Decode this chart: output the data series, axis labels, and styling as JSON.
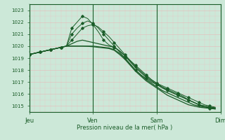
{
  "xlabel": "Pression niveau de la mer( hPa )",
  "xtick_labels": [
    "Jeu",
    "Ven",
    "Sam",
    "Dim"
  ],
  "xtick_positions": [
    0,
    24,
    48,
    72
  ],
  "ylim": [
    1014.5,
    1023.5
  ],
  "yticks": [
    1015,
    1016,
    1017,
    1018,
    1019,
    1020,
    1021,
    1022,
    1023
  ],
  "bg_color": "#cce8d8",
  "grid_color_major": "#e8b8b8",
  "grid_color_minor": "#e8c8c8",
  "line_color": "#1a5c28",
  "fig_bg": "#cce8d8",
  "lines": [
    {
      "y": [
        1019.3,
        1019.4,
        1019.5,
        1019.6,
        1019.7,
        1019.8,
        1019.9,
        1020.0,
        1021.5,
        1022.0,
        1022.5,
        1022.3,
        1021.8,
        1021.2,
        1020.5,
        1020.1,
        1019.9,
        1019.6,
        1019.2,
        1018.8,
        1018.4,
        1018.0,
        1017.6,
        1017.2,
        1016.9,
        1016.6,
        1016.4,
        1016.2,
        1016.0,
        1015.8,
        1015.5,
        1015.3,
        1015.1,
        1014.9,
        1014.8,
        1014.75
      ],
      "marker": true
    },
    {
      "y": [
        1019.3,
        1019.4,
        1019.5,
        1019.6,
        1019.7,
        1019.8,
        1019.9,
        1020.0,
        1021.0,
        1021.5,
        1021.9,
        1022.1,
        1021.9,
        1021.5,
        1021.0,
        1020.5,
        1020.0,
        1019.5,
        1019.0,
        1018.5,
        1018.0,
        1017.6,
        1017.3,
        1017.0,
        1016.8,
        1016.5,
        1016.3,
        1016.1,
        1015.9,
        1015.7,
        1015.5,
        1015.3,
        1015.1,
        1015.0,
        1014.9,
        1014.85
      ],
      "marker": true
    },
    {
      "y": [
        1019.3,
        1019.4,
        1019.5,
        1019.6,
        1019.7,
        1019.8,
        1019.9,
        1020.0,
        1020.5,
        1021.0,
        1021.5,
        1021.7,
        1021.8,
        1021.6,
        1021.2,
        1020.8,
        1020.3,
        1019.8,
        1019.3,
        1018.8,
        1018.3,
        1017.9,
        1017.5,
        1017.2,
        1016.9,
        1016.7,
        1016.5,
        1016.3,
        1016.1,
        1015.9,
        1015.7,
        1015.5,
        1015.3,
        1015.1,
        1015.0,
        1014.9
      ],
      "marker": true
    },
    {
      "y": [
        1019.3,
        1019.4,
        1019.5,
        1019.6,
        1019.7,
        1019.8,
        1019.9,
        1020.0,
        1020.2,
        1020.4,
        1020.5,
        1020.4,
        1020.3,
        1020.2,
        1020.1,
        1020.0,
        1019.9,
        1019.6,
        1019.2,
        1018.7,
        1018.2,
        1017.8,
        1017.4,
        1017.1,
        1016.8,
        1016.6,
        1016.3,
        1016.1,
        1015.9,
        1015.7,
        1015.5,
        1015.3,
        1015.1,
        1015.0,
        1014.9,
        1014.85
      ],
      "marker": false
    },
    {
      "y": [
        1019.3,
        1019.4,
        1019.5,
        1019.6,
        1019.7,
        1019.8,
        1019.9,
        1020.0,
        1020.0,
        1020.0,
        1020.0,
        1020.0,
        1020.0,
        1019.95,
        1019.9,
        1019.85,
        1019.7,
        1019.4,
        1019.0,
        1018.5,
        1018.0,
        1017.6,
        1017.2,
        1016.9,
        1016.6,
        1016.3,
        1016.1,
        1015.9,
        1015.7,
        1015.5,
        1015.3,
        1015.1,
        1015.0,
        1014.9,
        1014.85,
        1014.8
      ],
      "marker": false
    },
    {
      "y": [
        1019.3,
        1019.4,
        1019.5,
        1019.6,
        1019.7,
        1019.8,
        1019.9,
        1020.0,
        1020.0,
        1020.0,
        1020.0,
        1019.98,
        1019.95,
        1019.9,
        1019.85,
        1019.8,
        1019.65,
        1019.3,
        1018.9,
        1018.4,
        1017.9,
        1017.5,
        1017.1,
        1016.8,
        1016.5,
        1016.2,
        1015.9,
        1015.7,
        1015.5,
        1015.3,
        1015.1,
        1015.0,
        1014.9,
        1014.85,
        1014.8,
        1014.75
      ],
      "marker": false
    }
  ],
  "x_values": [
    0,
    2,
    4,
    6,
    8,
    10,
    12,
    14,
    16,
    18,
    20,
    22,
    24,
    26,
    28,
    30,
    32,
    34,
    36,
    38,
    40,
    42,
    44,
    46,
    48,
    50,
    52,
    54,
    56,
    58,
    60,
    62,
    64,
    66,
    68,
    70
  ]
}
